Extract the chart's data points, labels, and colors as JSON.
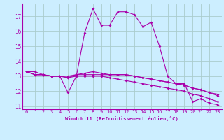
{
  "background_color": "#cceeff",
  "line_color": "#aa00aa",
  "grid_color": "#aacccc",
  "xlabel": "Windchill (Refroidissement éolien,°C)",
  "xlim": [
    -0.5,
    23.5
  ],
  "ylim": [
    10.8,
    17.8
  ],
  "yticks": [
    11,
    12,
    13,
    14,
    15,
    16,
    17
  ],
  "xticks": [
    0,
    1,
    2,
    3,
    4,
    5,
    6,
    7,
    8,
    9,
    10,
    11,
    12,
    13,
    14,
    15,
    16,
    17,
    18,
    19,
    20,
    21,
    22,
    23
  ],
  "series1": [
    13.3,
    13.3,
    13.1,
    13.0,
    13.0,
    11.9,
    13.0,
    15.9,
    17.5,
    16.4,
    16.4,
    17.3,
    17.3,
    17.1,
    16.3,
    16.6,
    15.0,
    13.0,
    12.5,
    12.5,
    11.3,
    11.5,
    11.2,
    11.1
  ],
  "series2": [
    13.3,
    13.1,
    13.1,
    13.0,
    13.0,
    12.9,
    13.0,
    13.0,
    13.0,
    13.0,
    12.9,
    12.8,
    12.7,
    12.6,
    12.5,
    12.4,
    12.3,
    12.2,
    12.1,
    12.0,
    11.8,
    11.7,
    11.5,
    11.3
  ],
  "series3": [
    13.3,
    13.1,
    13.1,
    13.0,
    13.0,
    12.9,
    13.1,
    13.1,
    13.1,
    13.1,
    13.1,
    13.1,
    13.1,
    13.0,
    12.9,
    12.8,
    12.7,
    12.6,
    12.5,
    12.4,
    12.2,
    12.1,
    11.9,
    11.7
  ],
  "series4": [
    13.3,
    13.1,
    13.1,
    13.0,
    13.0,
    13.0,
    13.1,
    13.2,
    13.3,
    13.2,
    13.1,
    13.1,
    13.1,
    13.0,
    12.9,
    12.8,
    12.7,
    12.6,
    12.5,
    12.4,
    12.2,
    12.1,
    11.9,
    11.8
  ],
  "marker_size": 2.0,
  "line_width": 0.8,
  "tick_fontsize": 5.0,
  "xlabel_fontsize": 5.2
}
